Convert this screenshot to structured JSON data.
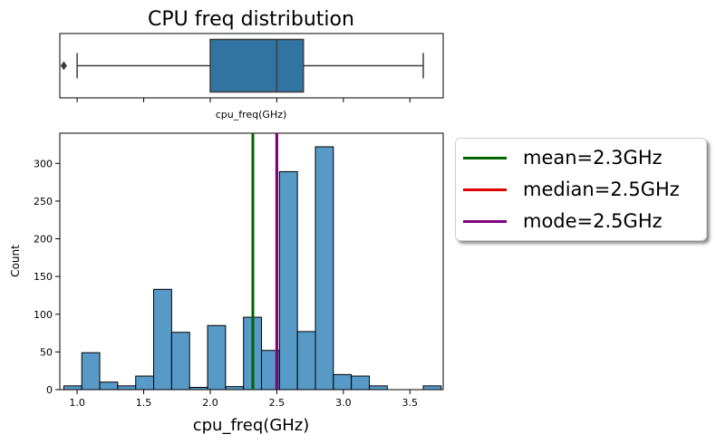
{
  "chart_data": [
    {
      "type": "box",
      "title": "CPU freq distribution",
      "xlabel": "cpu_freq(GHz)",
      "xlim": [
        0.87,
        3.75
      ],
      "box": {
        "whisker_low": 1.0,
        "q1": 2.0,
        "median": 2.5,
        "q3": 2.7,
        "whisker_high": 3.6
      },
      "outliers": [
        0.9
      ],
      "color": "#3274a1"
    },
    {
      "type": "histogram",
      "xlabel": "cpu_freq(GHz)",
      "ylabel": "Count",
      "xlim": [
        0.87,
        3.75
      ],
      "ylim": [
        0,
        340
      ],
      "xticks": [
        "1.0",
        "1.5",
        "2.0",
        "2.5",
        "3.0",
        "3.5"
      ],
      "yticks": [
        "0",
        "50",
        "100",
        "150",
        "200",
        "250",
        "300"
      ],
      "bin_width": 0.135,
      "bin_start": 0.9,
      "counts": [
        5,
        49,
        10,
        5,
        18,
        133,
        76,
        3,
        85,
        4,
        96,
        52,
        289,
        77,
        322,
        20,
        18,
        5,
        0,
        0,
        5
      ],
      "bar_color": "#5799c7",
      "vlines": [
        {
          "label": "mean=2.3GHz",
          "x": 2.32,
          "color": "#006400"
        },
        {
          "label": "median=2.5GHz",
          "x": 2.5,
          "color": "#e00000"
        },
        {
          "label": "mode=2.5GHz",
          "x": 2.5,
          "color": "#800080"
        }
      ],
      "legend_position": "outside-upper-right"
    }
  ]
}
